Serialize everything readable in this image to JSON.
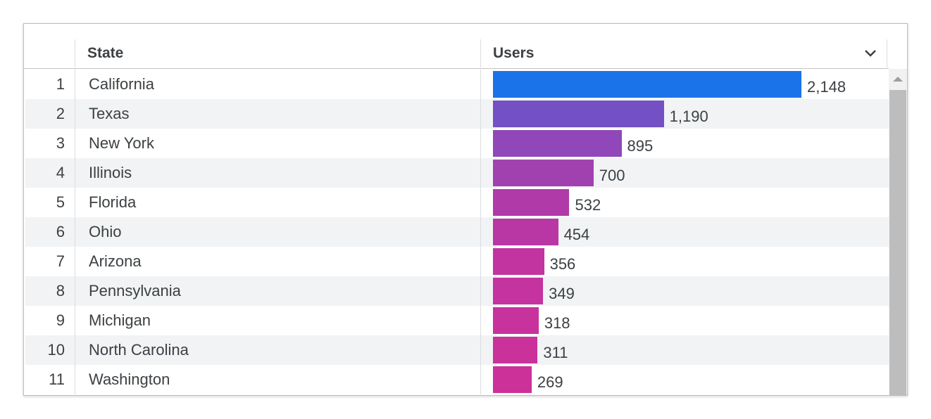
{
  "table": {
    "columns": [
      "State",
      "Users"
    ],
    "rows": [
      {
        "index": 1,
        "state": "California",
        "users": {
          "value": 2148,
          "label": "2,148"
        },
        "color": "#1a73e8"
      },
      {
        "index": 2,
        "state": "Texas",
        "users": {
          "value": 1190,
          "label": "1,190"
        },
        "color": "#7350c4"
      },
      {
        "index": 3,
        "state": "New York",
        "users": {
          "value": 895,
          "label": "895"
        },
        "color": "#9047ba"
      },
      {
        "index": 4,
        "state": "Illinois",
        "users": {
          "value": 700,
          "label": "700"
        },
        "color": "#a141b0"
      },
      {
        "index": 5,
        "state": "Florida",
        "users": {
          "value": 532,
          "label": "532"
        },
        "color": "#b03aa8"
      },
      {
        "index": 6,
        "state": "Ohio",
        "users": {
          "value": 454,
          "label": "454"
        },
        "color": "#b837a4"
      },
      {
        "index": 7,
        "state": "Arizona",
        "users": {
          "value": 356,
          "label": "356"
        },
        "color": "#c234a0"
      },
      {
        "index": 8,
        "state": "Pennsylvania",
        "users": {
          "value": 349,
          "label": "349"
        },
        "color": "#c433a0"
      },
      {
        "index": 9,
        "state": "Michigan",
        "users": {
          "value": 318,
          "label": "318"
        },
        "color": "#c8329c"
      },
      {
        "index": 10,
        "state": "North Carolina",
        "users": {
          "value": 311,
          "label": "311"
        },
        "color": "#ca319b"
      },
      {
        "index": 11,
        "state": "Washington",
        "users": {
          "value": 269,
          "label": "269"
        },
        "color": "#cc3099"
      }
    ]
  }
}
